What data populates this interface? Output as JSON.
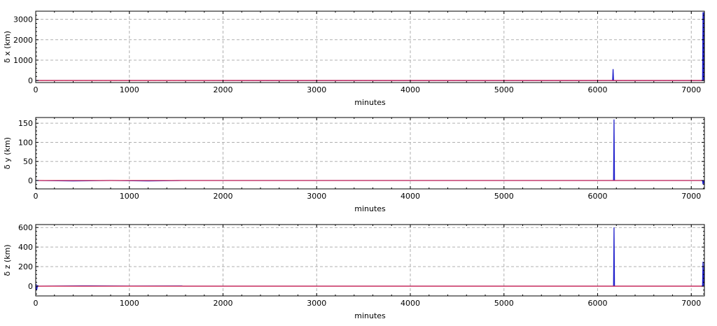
{
  "chart_data": [
    {
      "type": "line",
      "xlabel": "minutes",
      "ylabel": "δ x (km)",
      "xlim": [
        0,
        7140
      ],
      "ylim": [
        -100,
        3400
      ],
      "xticks": [
        0,
        1000,
        2000,
        3000,
        4000,
        5000,
        6000,
        7000
      ],
      "yticks": [
        0,
        1000,
        2000,
        3000
      ],
      "grid": true,
      "series": [
        {
          "color": "#2222cc",
          "x": [
            0,
            1560,
            3000,
            6160,
            6165,
            6170,
            7120,
            7125,
            7130,
            7135,
            7140
          ],
          "y": [
            2,
            2,
            1,
            1,
            560,
            1,
            1,
            3350,
            1,
            3350,
            1
          ]
        },
        {
          "color": "#dd1133",
          "x": [
            0,
            7140
          ],
          "y": [
            0,
            0
          ]
        }
      ]
    },
    {
      "type": "line",
      "xlabel": "minutes",
      "ylabel": "δ y (km)",
      "xlim": [
        0,
        7140
      ],
      "ylim": [
        -22,
        165
      ],
      "xticks": [
        0,
        1000,
        2000,
        3000,
        4000,
        5000,
        6000,
        7000
      ],
      "yticks": [
        0,
        50,
        100,
        150
      ],
      "grid": true,
      "series": [
        {
          "color": "#2222cc",
          "x": [
            0,
            400,
            800,
            1200,
            1560,
            1570,
            3000,
            6170,
            6175,
            6180,
            7120,
            7125,
            7130,
            7140
          ],
          "y": [
            0,
            -1,
            0,
            -1,
            0,
            0,
            0,
            0,
            160,
            0,
            0,
            -10,
            0,
            -10
          ]
        },
        {
          "color": "#dd1133",
          "x": [
            0,
            7140
          ],
          "y": [
            0,
            0
          ]
        }
      ]
    },
    {
      "type": "line",
      "xlabel": "minutes",
      "ylabel": "δ z (km)",
      "xlim": [
        0,
        7140
      ],
      "ylim": [
        -100,
        630
      ],
      "xticks": [
        0,
        1000,
        2000,
        3000,
        4000,
        5000,
        6000,
        7000
      ],
      "yticks": [
        0,
        200,
        400,
        600
      ],
      "grid": true,
      "series": [
        {
          "color": "#2222cc",
          "x": [
            0,
            5,
            10,
            20,
            30,
            500,
            1000,
            1560,
            1570,
            3000,
            6170,
            6175,
            6180,
            7120,
            7125,
            7130,
            7140
          ],
          "y": [
            -40,
            20,
            -40,
            5,
            0,
            3,
            1,
            2,
            0,
            0,
            0,
            600,
            0,
            0,
            250,
            0,
            250
          ]
        },
        {
          "color": "#dd1133",
          "x": [
            0,
            7140
          ],
          "y": [
            0,
            0
          ]
        }
      ]
    }
  ]
}
